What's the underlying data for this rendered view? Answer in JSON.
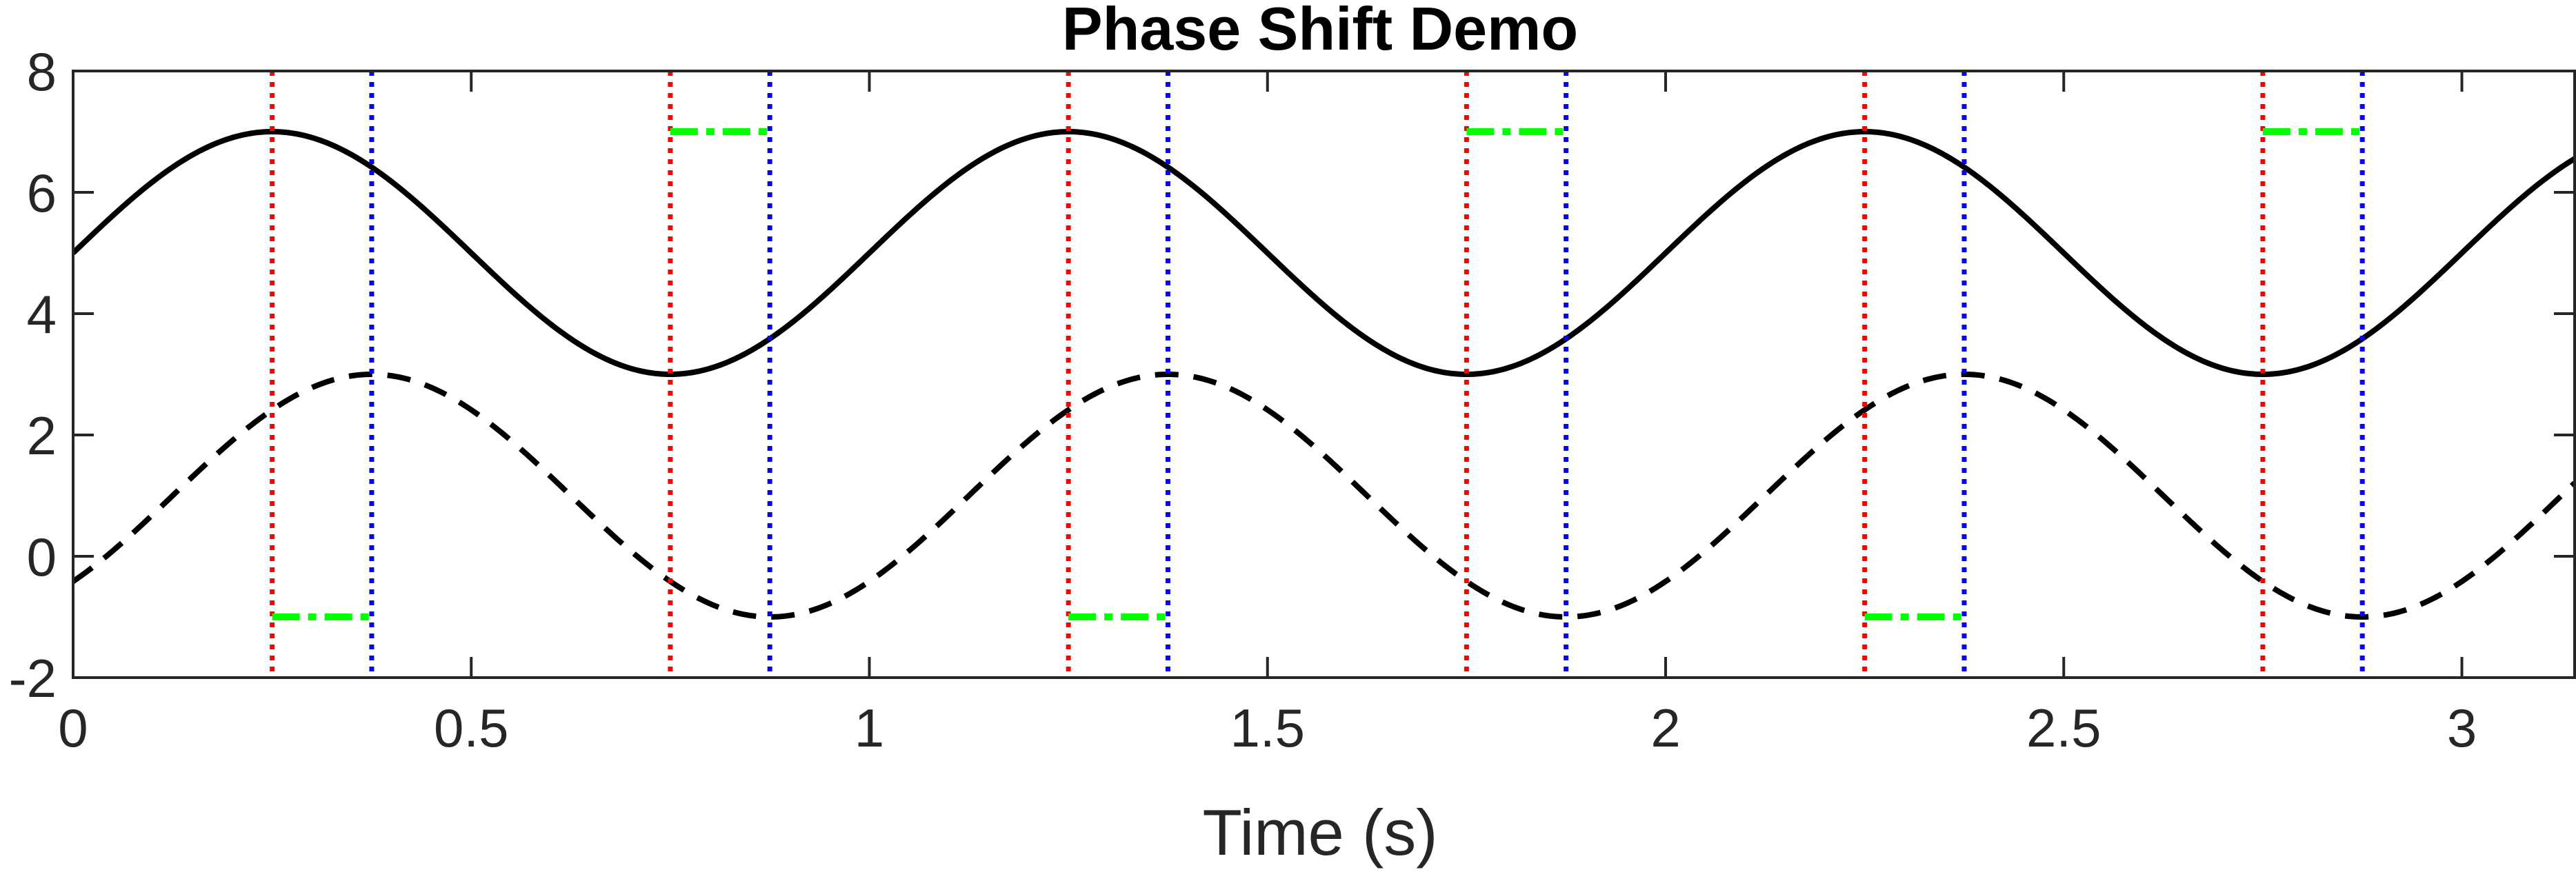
{
  "chart_data": {
    "type": "line",
    "title": "Phase Shift Demo",
    "xlabel": "Time (s)",
    "ylabel": "",
    "xlim": [
      0,
      3.1416
    ],
    "ylim": [
      -2,
      8
    ],
    "x_ticks": [
      0,
      0.5,
      1,
      1.5,
      2,
      2.5,
      3
    ],
    "x_tick_labels": [
      "0",
      "0.5",
      "1",
      "1.5",
      "2",
      "2.5",
      "3"
    ],
    "y_ticks": [
      -2,
      0,
      2,
      4,
      6,
      8
    ],
    "y_tick_labels": [
      "-2",
      "0",
      "2",
      "4",
      "6",
      "8"
    ],
    "grid": false,
    "series": [
      {
        "style": "solid",
        "color": "#000000",
        "function": "5 + 2*sin(2*pi*t)",
        "amplitude": 2,
        "offset": 5,
        "frequency_hz": 1,
        "phase_shift_s": 0
      },
      {
        "style": "dashed",
        "color": "#000000",
        "function": "1 + 2*sin(2*pi*(t - 0.125))",
        "amplitude": 2,
        "offset": 1,
        "frequency_hz": 1,
        "phase_shift_s": 0.125
      }
    ],
    "reference_lines": {
      "red_dotted_x": [
        0.25,
        0.75,
        1.25,
        1.75,
        2.25,
        2.75
      ],
      "blue_dotted_x": [
        0.375,
        0.875,
        1.375,
        1.875,
        2.375,
        2.875
      ],
      "red_color": "#ff0000",
      "blue_color": "#0000ff"
    },
    "shift_markers": {
      "color": "#00ff00",
      "segments": [
        {
          "x": [
            0.25,
            0.375
          ],
          "y": -1
        },
        {
          "x": [
            0.75,
            0.875
          ],
          "y": 7
        },
        {
          "x": [
            1.25,
            1.375
          ],
          "y": -1
        },
        {
          "x": [
            1.75,
            1.875
          ],
          "y": 7
        },
        {
          "x": [
            2.25,
            2.375
          ],
          "y": -1
        },
        {
          "x": [
            2.75,
            2.875
          ],
          "y": 7
        }
      ]
    }
  }
}
